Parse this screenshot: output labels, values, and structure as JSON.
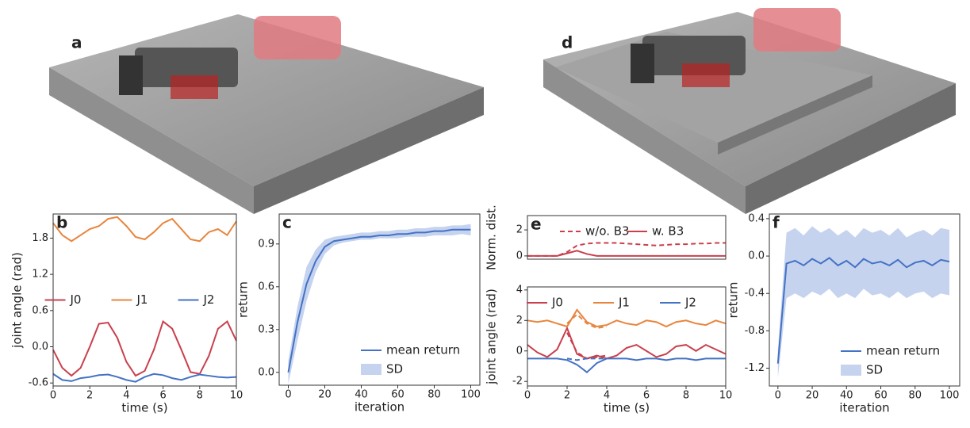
{
  "image_panels": [
    {
      "label": "a"
    },
    {
      "label": "d"
    }
  ],
  "chart_data": [
    {
      "type": "line",
      "panel_label": "b",
      "xlabel": "time (s)",
      "ylabel": "joint angle (rad)",
      "x": [
        0,
        0.5,
        1,
        1.5,
        2,
        2.5,
        3,
        3.5,
        4,
        4.5,
        5,
        5.5,
        6,
        6.5,
        7,
        7.5,
        8,
        8.5,
        9,
        9.5,
        10
      ],
      "xlim": [
        0,
        10
      ],
      "xticks": [
        0,
        2,
        4,
        6,
        8,
        10
      ],
      "ylim": [
        -0.65,
        2.2
      ],
      "yticks": [
        -0.6,
        {
          "value": 0,
          "label": "0.0"
        },
        0.6,
        1.2,
        1.8
      ],
      "legend": "center",
      "series": [
        {
          "name": "J0",
          "color": "#c9404d",
          "values": [
            -0.05,
            -0.35,
            -0.48,
            -0.35,
            0.0,
            0.38,
            0.4,
            0.15,
            -0.25,
            -0.48,
            -0.4,
            -0.05,
            0.42,
            0.3,
            -0.05,
            -0.42,
            -0.45,
            -0.15,
            0.3,
            0.42,
            0.1
          ]
        },
        {
          "name": "J1",
          "color": "#e8853d",
          "values": [
            2.05,
            1.85,
            1.75,
            1.85,
            1.95,
            2.0,
            2.12,
            2.15,
            2.0,
            1.82,
            1.78,
            1.9,
            2.05,
            2.12,
            1.95,
            1.78,
            1.75,
            1.9,
            1.95,
            1.85,
            2.08
          ]
        },
        {
          "name": "J2",
          "color": "#4472c4",
          "values": [
            -0.45,
            -0.55,
            -0.57,
            -0.52,
            -0.5,
            -0.47,
            -0.46,
            -0.5,
            -0.55,
            -0.58,
            -0.5,
            -0.45,
            -0.47,
            -0.52,
            -0.55,
            -0.5,
            -0.46,
            -0.48,
            -0.5,
            -0.51,
            -0.5
          ]
        }
      ]
    },
    {
      "type": "line",
      "panel_label": "c",
      "xlabel": "iteration",
      "ylabel": "return",
      "x": [
        0,
        5,
        10,
        15,
        20,
        25,
        30,
        35,
        40,
        45,
        50,
        55,
        60,
        65,
        70,
        75,
        80,
        85,
        90,
        95,
        100
      ],
      "xlim": [
        -5,
        105
      ],
      "xticks": [
        0,
        20,
        40,
        60,
        80,
        100
      ],
      "ylim": [
        -0.09,
        1.11
      ],
      "yticks": [
        {
          "value": 0,
          "label": "0.0"
        },
        0.3,
        0.6,
        0.9
      ],
      "legend": "lower right",
      "series": [
        {
          "name": "mean return",
          "color": "#4472c4",
          "values": [
            0,
            0.35,
            0.62,
            0.78,
            0.88,
            0.92,
            0.93,
            0.94,
            0.95,
            0.95,
            0.96,
            0.96,
            0.97,
            0.97,
            0.98,
            0.98,
            0.99,
            0.99,
            1.0,
            1.0,
            1.0
          ]
        }
      ],
      "band": {
        "name": "SD",
        "color": "#c5d3ef",
        "lower": [
          -0.08,
          0.22,
          0.5,
          0.7,
          0.83,
          0.89,
          0.91,
          0.92,
          0.93,
          0.93,
          0.94,
          0.94,
          0.94,
          0.95,
          0.95,
          0.95,
          0.96,
          0.96,
          0.96,
          0.97,
          0.96
        ],
        "upper": [
          0.08,
          0.46,
          0.74,
          0.86,
          0.93,
          0.95,
          0.96,
          0.97,
          0.98,
          0.98,
          0.99,
          0.99,
          1.0,
          1.0,
          1.01,
          1.01,
          1.02,
          1.02,
          1.03,
          1.03,
          1.04
        ]
      }
    },
    {
      "type": "line",
      "panel_label": "e",
      "ylabel": "Norm. dist.",
      "x": [
        0,
        0.5,
        1,
        1.5,
        2,
        2.5,
        3,
        3.5,
        4,
        4.5,
        5,
        5.5,
        6,
        6.5,
        7,
        7.5,
        8,
        8.5,
        9,
        9.5,
        10
      ],
      "xlim": [
        0,
        10
      ],
      "ylim": [
        -0.25,
        3.1
      ],
      "yticks": [
        0,
        2
      ],
      "legend": "upper center",
      "series": [
        {
          "name": "w/o. B3",
          "color": "#c9404d",
          "dash": true,
          "values": [
            0,
            0,
            0,
            0,
            0.3,
            0.8,
            0.95,
            1.0,
            1.0,
            1.0,
            0.95,
            0.9,
            0.85,
            0.8,
            0.85,
            0.9,
            0.9,
            0.95,
            0.95,
            1.0,
            1.0
          ]
        },
        {
          "name": "w. B3",
          "color": "#c9404d",
          "values": [
            0,
            0,
            0,
            0,
            0.2,
            0.4,
            0.15,
            0,
            0,
            0,
            0,
            0,
            0,
            0,
            0,
            0,
            0,
            0,
            0,
            0,
            0
          ]
        }
      ]
    },
    {
      "type": "line",
      "xlabel": "time (s)",
      "ylabel": "joint angle (rad)",
      "x": [
        0,
        0.5,
        1,
        1.5,
        2,
        2.5,
        3,
        3.5,
        4,
        4.5,
        5,
        5.5,
        6,
        6.5,
        7,
        7.5,
        8,
        8.5,
        9,
        9.5,
        10
      ],
      "xlim": [
        0,
        10
      ],
      "xticks": [
        0,
        2,
        4,
        6,
        8,
        10
      ],
      "ylim": [
        -2.3,
        4.2
      ],
      "yticks": [
        -2,
        0,
        2,
        4
      ],
      "legend": "upper center",
      "series": [
        {
          "name": "J0",
          "color": "#c9404d",
          "values": [
            0.4,
            -0.1,
            -0.4,
            0.1,
            1.5,
            -0.2,
            -0.5,
            -0.3,
            -0.5,
            -0.3,
            0.2,
            0.4,
            0.0,
            -0.4,
            -0.2,
            0.3,
            0.4,
            0.0,
            0.4,
            0.1,
            -0.2
          ]
        },
        {
          "name": "J1",
          "color": "#e8853d",
          "values": [
            2.0,
            1.9,
            2.0,
            1.8,
            1.6,
            2.7,
            1.9,
            1.6,
            1.7,
            2.0,
            1.8,
            1.7,
            2.0,
            1.9,
            1.6,
            1.9,
            2.0,
            1.8,
            1.7,
            2.0,
            1.8
          ]
        },
        {
          "name": "J2",
          "color": "#4472c4",
          "values": [
            -0.5,
            -0.5,
            -0.5,
            -0.5,
            -0.6,
            -0.9,
            -1.4,
            -0.8,
            -0.5,
            -0.5,
            -0.5,
            -0.6,
            -0.5,
            -0.5,
            -0.6,
            -0.5,
            -0.5,
            -0.6,
            -0.5,
            -0.5,
            -0.5
          ]
        },
        {
          "color": "#c9404d",
          "dash": true,
          "values": [
            null,
            null,
            null,
            null,
            1.2,
            -0.1,
            -0.5,
            -0.4,
            -0.3,
            null,
            null,
            null,
            null,
            null,
            null,
            null,
            null,
            null,
            null,
            null,
            null
          ]
        },
        {
          "color": "#e8853d",
          "dash": true,
          "values": [
            null,
            null,
            null,
            null,
            1.8,
            2.4,
            1.8,
            1.5,
            1.6,
            null,
            null,
            null,
            null,
            null,
            null,
            null,
            null,
            null,
            null,
            null,
            null
          ]
        },
        {
          "color": "#4472c4",
          "dash": true,
          "values": [
            null,
            null,
            null,
            null,
            -0.5,
            -0.6,
            -0.5,
            -0.5,
            -0.5,
            null,
            null,
            null,
            null,
            null,
            null,
            null,
            null,
            null,
            null,
            null,
            null
          ]
        }
      ]
    },
    {
      "type": "line",
      "panel_label": "f",
      "xlabel": "iteration",
      "ylabel": "return",
      "x": [
        0,
        5,
        10,
        15,
        20,
        25,
        30,
        35,
        40,
        45,
        50,
        55,
        60,
        65,
        70,
        75,
        80,
        85,
        90,
        95,
        100
      ],
      "xlim": [
        -5,
        106
      ],
      "xticks": [
        0,
        20,
        40,
        60,
        80,
        100
      ],
      "ylim": [
        -1.39,
        0.45
      ],
      "yticks": [
        -1.2,
        -0.8,
        -0.4,
        {
          "value": 0,
          "label": "0.0"
        },
        0.4
      ],
      "legend": "lower right",
      "series": [
        {
          "name": "mean return",
          "color": "#4472c4",
          "values": [
            -1.15,
            -0.08,
            -0.05,
            -0.1,
            -0.03,
            -0.08,
            -0.02,
            -0.1,
            -0.05,
            -0.12,
            -0.03,
            -0.08,
            -0.06,
            -0.1,
            -0.04,
            -0.12,
            -0.07,
            -0.05,
            -0.1,
            -0.04,
            -0.06
          ]
        }
      ],
      "band": {
        "name": "SD",
        "color": "#c5d3ef",
        "lower": [
          -1.3,
          -0.45,
          -0.4,
          -0.45,
          -0.38,
          -0.42,
          -0.35,
          -0.45,
          -0.4,
          -0.45,
          -0.35,
          -0.42,
          -0.4,
          -0.45,
          -0.38,
          -0.45,
          -0.4,
          -0.38,
          -0.45,
          -0.4,
          -0.42
        ],
        "upper": [
          -1.0,
          0.25,
          0.3,
          0.22,
          0.32,
          0.25,
          0.3,
          0.22,
          0.28,
          0.2,
          0.3,
          0.25,
          0.28,
          0.22,
          0.3,
          0.2,
          0.25,
          0.28,
          0.22,
          0.3,
          0.28
        ]
      }
    }
  ]
}
